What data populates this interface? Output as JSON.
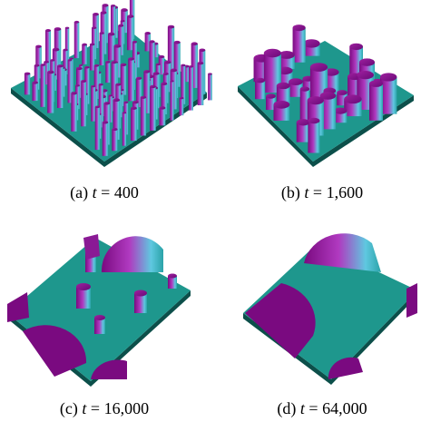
{
  "figure": {
    "panels": [
      {
        "label": "(a)",
        "variable": "t",
        "value": "= 400"
      },
      {
        "label": "(b)",
        "variable": "t",
        "value": "= 1,600"
      },
      {
        "label": "(c)",
        "variable": "t",
        "value": "= 16,000"
      },
      {
        "label": "(d)",
        "variable": "t",
        "value": "= 64,000"
      }
    ]
  }
}
